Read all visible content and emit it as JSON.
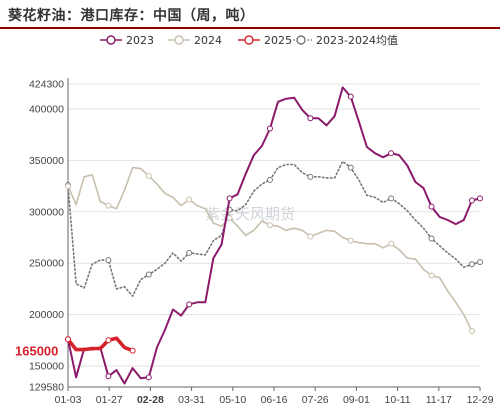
{
  "chart_data": {
    "type": "line",
    "title": "葵花籽油：港口库存：中国（周，吨）",
    "watermark": "紫金天风期货",
    "x_ticks": [
      "01-03",
      "01-27",
      "02-28",
      "03-31",
      "05-10",
      "06-16",
      "07-26",
      "09-01",
      "10-11",
      "11-17",
      "12-29"
    ],
    "highlight_x_tick": "02-28",
    "y_ticks": [
      129580,
      150000,
      200000,
      250000,
      300000,
      350000,
      400000,
      424300
    ],
    "ylim": [
      129580,
      424300
    ],
    "highlight_y_value": 165000,
    "highlight_y_label": "165000",
    "legend_position": "top",
    "series": [
      {
        "name": "2023",
        "color": "#8b1a6b",
        "style": "solid",
        "marker": "circle",
        "values": [
          176000,
          139000,
          167000,
          166000,
          168000,
          140000,
          146000,
          133000,
          148000,
          138000,
          139000,
          168000,
          185000,
          205000,
          199000,
          210000,
          212000,
          212000,
          255000,
          268000,
          313000,
          317000,
          337000,
          355000,
          364000,
          381000,
          407000,
          410000,
          411000,
          399000,
          391000,
          391000,
          384000,
          393000,
          421000,
          412000,
          388000,
          363000,
          357000,
          353000,
          357000,
          355000,
          345000,
          329000,
          323000,
          305000,
          295000,
          292000,
          288000,
          292000,
          311000,
          313000
        ]
      },
      {
        "name": "2024",
        "color": "#c9bfae",
        "style": "solid",
        "marker": "circle",
        "values": [
          325000,
          307000,
          334000,
          336000,
          310000,
          306000,
          303000,
          321000,
          343000,
          342000,
          335000,
          327000,
          318000,
          314000,
          306000,
          312000,
          306000,
          303000,
          289000,
          286000,
          294000,
          286000,
          277000,
          282000,
          291000,
          287000,
          286000,
          282000,
          284000,
          282000,
          276000,
          279000,
          282000,
          281000,
          275000,
          272000,
          270000,
          269000,
          269000,
          265000,
          269000,
          263000,
          255000,
          254000,
          244000,
          238000,
          236000,
          223000,
          212000,
          200000,
          184000
        ]
      },
      {
        "name": "2025",
        "color": "#d6222a",
        "style": "solid",
        "marker": "circle",
        "values": [
          176000,
          166000,
          166000,
          167000,
          167000,
          175000,
          177000,
          168000,
          165000
        ]
      },
      {
        "name": "2023-2024均值",
        "color": "#777777",
        "style": "dotted",
        "marker": "circle",
        "values": [
          326000,
          230000,
          226000,
          249000,
          253000,
          253000,
          225000,
          227000,
          218000,
          234000,
          239000,
          244000,
          250000,
          260000,
          252000,
          260000,
          259000,
          258000,
          272000,
          277000,
          302000,
          301000,
          307000,
          320000,
          327000,
          331000,
          343000,
          346000,
          346000,
          338000,
          334000,
          334000,
          333000,
          333000,
          349000,
          343000,
          331000,
          316000,
          314000,
          309000,
          313000,
          308000,
          301000,
          292000,
          284000,
          274000,
          267000,
          260000,
          254000,
          246000,
          249000,
          251000
        ]
      }
    ]
  }
}
